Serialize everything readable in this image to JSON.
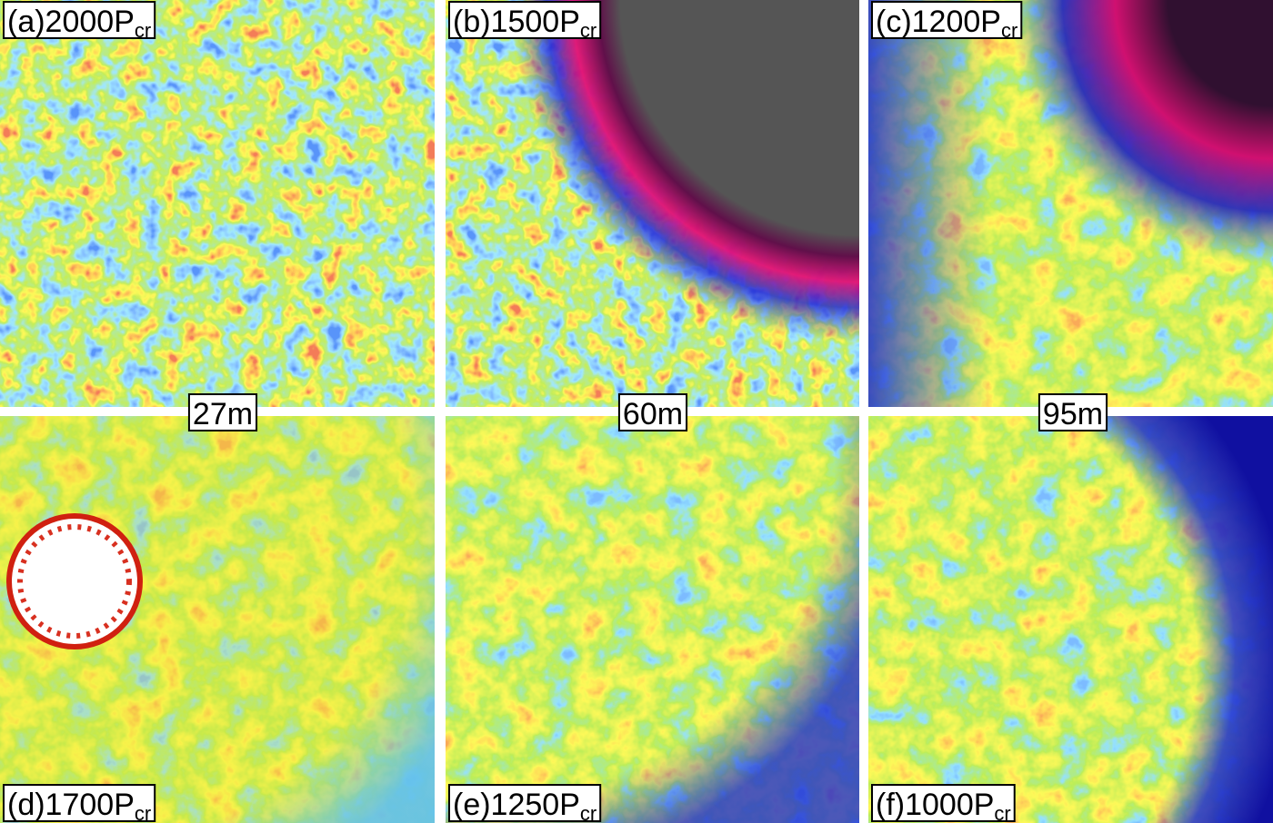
{
  "panels": [
    {
      "label": "(a)2000P",
      "subscript": "cr"
    },
    {
      "label": "(b)1500P",
      "subscript": "cr"
    },
    {
      "label": "(c)1200P",
      "subscript": "cr"
    },
    {
      "label": "(d)1700P",
      "subscript": "cr"
    },
    {
      "label": "(e)1250P",
      "subscript": "cr"
    },
    {
      "label": "(f)1000P",
      "subscript": "cr"
    }
  ],
  "scale_bars": [
    "27m",
    "60m",
    "95m"
  ]
}
